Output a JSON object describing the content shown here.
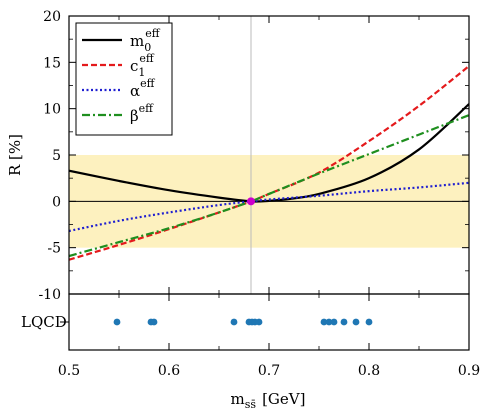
{
  "chart_data": [
    {
      "type": "line",
      "ylabel": "R  [%]",
      "xlim": [
        0.5,
        0.9
      ],
      "ylim": [
        -10,
        20
      ],
      "x_ticks": [
        0.5,
        0.6,
        0.7,
        0.8,
        0.9
      ],
      "x_tick_labels": [
        "0.5",
        "0.6",
        "0.7",
        "0.8",
        "0.9"
      ],
      "y_ticks": [
        -10,
        -5,
        0,
        5,
        10,
        15,
        20
      ],
      "y_tick_labels": [
        "-10",
        "-5",
        "0",
        "5",
        "10",
        "15",
        "20"
      ],
      "band": {
        "ymin": -5,
        "ymax": 5,
        "color": "#fdf1bf"
      },
      "reference_x": 0.682,
      "crossing_point": {
        "x": 0.682,
        "y": 0,
        "color": "#cc00cc"
      },
      "legend_position": "top-left",
      "grid": false,
      "series": [
        {
          "name": "m",
          "name_sub": "0",
          "name_sup": "eff",
          "color": "#000000",
          "style": "solid",
          "x": [
            0.5,
            0.55,
            0.6,
            0.65,
            0.682,
            0.7,
            0.72,
            0.75,
            0.8,
            0.85,
            0.9
          ],
          "y": [
            3.3,
            2.2,
            1.2,
            0.4,
            0.0,
            0.05,
            0.25,
            0.8,
            2.5,
            5.6,
            10.5
          ]
        },
        {
          "name": "c",
          "name_sub": "1",
          "name_sup": "eff",
          "color": "#e41a1c",
          "style": "dashed",
          "x": [
            0.5,
            0.55,
            0.6,
            0.65,
            0.682,
            0.7,
            0.75,
            0.8,
            0.85,
            0.9
          ],
          "y": [
            -6.3,
            -4.7,
            -3.0,
            -1.2,
            0.0,
            0.8,
            3.1,
            6.5,
            10.3,
            14.6
          ]
        },
        {
          "name": "α",
          "name_sub": "",
          "name_sup": "eff",
          "color": "#1f1fd0",
          "style": "dotted",
          "x": [
            0.5,
            0.55,
            0.6,
            0.65,
            0.682,
            0.7,
            0.75,
            0.8,
            0.85,
            0.9
          ],
          "y": [
            -3.2,
            -2.1,
            -1.2,
            -0.4,
            0.0,
            0.2,
            0.6,
            1.1,
            1.5,
            2.0
          ]
        },
        {
          "name": "β",
          "name_sub": "",
          "name_sup": "eff",
          "color": "#1f8f1f",
          "style": "dashdot",
          "x": [
            0.5,
            0.55,
            0.6,
            0.65,
            0.682,
            0.7,
            0.75,
            0.8,
            0.85,
            0.9
          ],
          "y": [
            -5.9,
            -4.4,
            -2.9,
            -1.2,
            0.0,
            0.8,
            3.0,
            5.1,
            7.2,
            9.3
          ]
        }
      ]
    },
    {
      "type": "scatter",
      "xlabel": "m",
      "xlabel_sub": "ss̄",
      "xlabel_unit": "[GeV]",
      "category_label": "LQCD",
      "xlim": [
        0.5,
        0.9
      ],
      "color": "#1f77b4",
      "x": [
        0.548,
        0.582,
        0.585,
        0.665,
        0.68,
        0.683,
        0.686,
        0.69,
        0.755,
        0.76,
        0.765,
        0.775,
        0.787,
        0.8
      ]
    }
  ]
}
